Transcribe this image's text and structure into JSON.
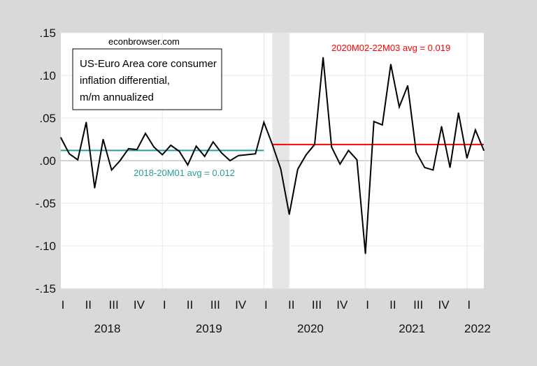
{
  "chart_data": {
    "type": "line",
    "title": "US-Euro Area core consumer inflation differential, m/m annualized",
    "title_lines": [
      "US-Euro Area core consumer",
      "inflation differential,",
      "m/m annualized"
    ],
    "source": "econbrowser.com",
    "x_start": "2018M01",
    "x_end": "2022M03",
    "frequency": "monthly",
    "ylim": [
      -0.15,
      0.15
    ],
    "y_ticks": [
      ".15",
      ".10",
      ".05",
      ".00",
      "-.05",
      "-.10",
      "-.15"
    ],
    "y_tick_values": [
      0.15,
      0.1,
      0.05,
      0.0,
      -0.05,
      -0.1,
      -0.15
    ],
    "quarter_labels": [
      "I",
      "II",
      "III",
      "IV",
      "I",
      "II",
      "III",
      "IV",
      "I",
      "II",
      "III",
      "IV",
      "I",
      "II",
      "III",
      "IV",
      "I"
    ],
    "year_labels": [
      "2018",
      "2019",
      "2020",
      "2021",
      "2022"
    ],
    "grid": true,
    "shaded_period": [
      "2020M02",
      "2020M03"
    ],
    "series": [
      {
        "color": "#000000",
        "values": [
          0.027,
          0.008,
          0.001,
          0.045,
          -0.032,
          0.025,
          -0.011,
          0.0,
          0.014,
          0.013,
          0.032,
          0.016,
          0.007,
          0.018,
          0.011,
          -0.005,
          0.017,
          0.005,
          0.022,
          0.009,
          0.0,
          0.006,
          0.007,
          0.008,
          0.045,
          0.019,
          -0.01,
          -0.063,
          -0.01,
          0.007,
          0.019,
          0.121,
          0.016,
          -0.004,
          0.012,
          0.001,
          -0.109,
          0.046,
          0.042,
          0.113,
          0.063,
          0.088,
          0.01,
          -0.008,
          -0.011,
          0.04,
          -0.008,
          0.056,
          0.003,
          0.036,
          0.012
        ]
      }
    ],
    "averages": [
      {
        "label": "2018-20M01 avg = 0.012",
        "value": 0.012,
        "from": 0,
        "to": 24,
        "color": "#2a9d96"
      },
      {
        "label": "2020M02-22M03 avg = 0.019",
        "value": 0.019,
        "from": 25,
        "to": 50,
        "color": "#ff0000"
      }
    ]
  }
}
